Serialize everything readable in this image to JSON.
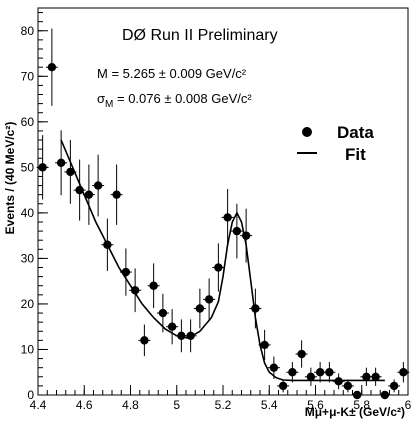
{
  "chart_data": {
    "type": "scatter",
    "title": "DØ Run II Preliminary",
    "xlabel": "Mμ+μ-K± (GeV/c²)",
    "ylabel": "Events / (40  MeV/c²)",
    "xlim": [
      4.4,
      6.0
    ],
    "ylim": [
      0,
      85
    ],
    "x_ticks": [
      "4.4",
      "4.6",
      "4.8",
      "5",
      "5.2",
      "5.4",
      "5.6",
      "5.8",
      "6"
    ],
    "y_ticks": [
      "0",
      "10",
      "20",
      "30",
      "40",
      "50",
      "60",
      "70",
      "80"
    ],
    "annotations": {
      "mass": "M  = 5.265 ± 0.009 GeV/c²",
      "sigma_symbol": "σ",
      "sigma_sub": "M",
      "sigma_value": " = 0.076 ± 0.008 GeV/c²"
    },
    "legend": {
      "position": "right",
      "data_label": "Data",
      "fit_label": "Fit"
    },
    "series": [
      {
        "name": "Data",
        "kind": "points_with_errors",
        "x": [
          4.42,
          4.46,
          4.5,
          4.54,
          4.58,
          4.62,
          4.66,
          4.7,
          4.74,
          4.78,
          4.82,
          4.86,
          4.9,
          4.94,
          4.98,
          5.02,
          5.06,
          5.1,
          5.14,
          5.18,
          5.22,
          5.26,
          5.3,
          5.34,
          5.38,
          5.42,
          5.46,
          5.5,
          5.54,
          5.58,
          5.62,
          5.66,
          5.7,
          5.74,
          5.78,
          5.82,
          5.86,
          5.9,
          5.94,
          5.98
        ],
        "y": [
          50,
          72,
          51,
          49,
          45,
          44,
          46,
          33,
          44,
          27,
          23,
          12,
          24,
          18,
          15,
          13,
          13,
          19,
          21,
          28,
          39,
          36,
          35,
          19,
          11,
          6,
          2,
          5,
          9,
          4,
          5,
          5,
          3,
          2,
          0,
          4,
          4,
          0,
          2,
          5
        ]
      },
      {
        "name": "Fit",
        "kind": "curve",
        "x": [
          4.5,
          4.55,
          4.6,
          4.65,
          4.7,
          4.75,
          4.8,
          4.85,
          4.9,
          4.95,
          5.0,
          5.05,
          5.1,
          5.15,
          5.18,
          5.2,
          5.22,
          5.24,
          5.26,
          5.28,
          5.3,
          5.32,
          5.34,
          5.36,
          5.38,
          5.4,
          5.43,
          5.46,
          5.5,
          5.6,
          5.7,
          5.8,
          5.9
        ],
        "y": [
          56,
          50,
          44,
          38,
          33,
          28,
          24,
          20,
          17,
          14.5,
          13,
          12.5,
          14,
          17,
          20.5,
          26,
          33,
          38,
          40,
          38,
          33,
          25,
          17,
          11,
          7,
          5,
          3.8,
          3.3,
          3.2,
          3.2,
          3.2,
          3.2,
          3.2
        ]
      }
    ]
  }
}
